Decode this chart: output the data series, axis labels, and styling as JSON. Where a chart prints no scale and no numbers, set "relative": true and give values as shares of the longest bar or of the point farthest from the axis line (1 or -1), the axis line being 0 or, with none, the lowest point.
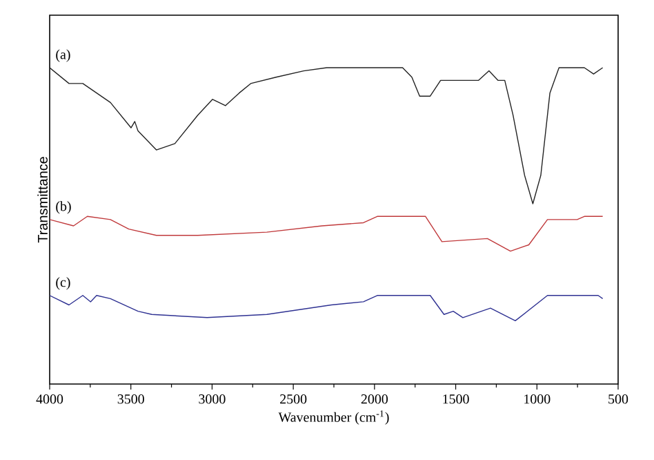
{
  "chart_data": {
    "type": "line",
    "relative": true,
    "xlabel": "Wavenumber (cm$^{-1}$)",
    "ylabel": "Transmittance",
    "xlim": [
      4000,
      500
    ],
    "xticks": [
      4000,
      3500,
      3000,
      2500,
      2000,
      1500,
      1000,
      500
    ],
    "tick_labels": "x",
    "legend": false,
    "grid": false,
    "marker": "none",
    "line_style": "solid",
    "series": [
      {
        "name": "(a)",
        "color": "#222222",
        "x": [
          4000,
          3881,
          3796,
          3711,
          3626,
          3499,
          3476,
          3456,
          3343,
          3229,
          3088,
          2997,
          2918,
          2833,
          2762,
          2606,
          2436,
          2294,
          2039,
          1827,
          1770,
          1722,
          1657,
          1593,
          1359,
          1295,
          1240,
          1198,
          1147,
          1076,
          1025,
          976,
          920,
          864,
          708,
          651,
          595
        ],
        "values": [
          1.0,
          0.95,
          0.95,
          0.92,
          0.89,
          0.81,
          0.83,
          0.8,
          0.74,
          0.76,
          0.85,
          0.9,
          0.88,
          0.92,
          0.95,
          0.97,
          0.99,
          1.0,
          1.0,
          1.0,
          0.97,
          0.91,
          0.91,
          0.96,
          0.96,
          0.99,
          0.96,
          0.96,
          0.85,
          0.66,
          0.57,
          0.66,
          0.92,
          1.0,
          1.0,
          0.98,
          1.0
        ]
      },
      {
        "name": "(b)",
        "color": "#c0393b",
        "x": [
          4000,
          3853,
          3768,
          3626,
          3513,
          3343,
          3088,
          2663,
          2323,
          2068,
          1983,
          1686,
          1585,
          1305,
          1163,
          1050,
          935,
          752,
          708,
          595
        ],
        "values": [
          0.52,
          0.5,
          0.53,
          0.52,
          0.49,
          0.47,
          0.47,
          0.48,
          0.5,
          0.51,
          0.53,
          0.53,
          0.45,
          0.46,
          0.42,
          0.44,
          0.52,
          0.52,
          0.53,
          0.53
        ]
      },
      {
        "name": "(c)",
        "color": "#2e3192",
        "x": [
          4000,
          3881,
          3796,
          3748,
          3711,
          3626,
          3456,
          3371,
          3031,
          2663,
          2266,
          2068,
          1983,
          1657,
          1572,
          1515,
          1456,
          1286,
          1133,
          935,
          623,
          595
        ],
        "values": [
          0.28,
          0.25,
          0.28,
          0.26,
          0.28,
          0.27,
          0.23,
          0.22,
          0.21,
          0.22,
          0.25,
          0.26,
          0.28,
          0.28,
          0.22,
          0.23,
          0.21,
          0.24,
          0.2,
          0.28,
          0.28,
          0.27
        ]
      }
    ]
  }
}
